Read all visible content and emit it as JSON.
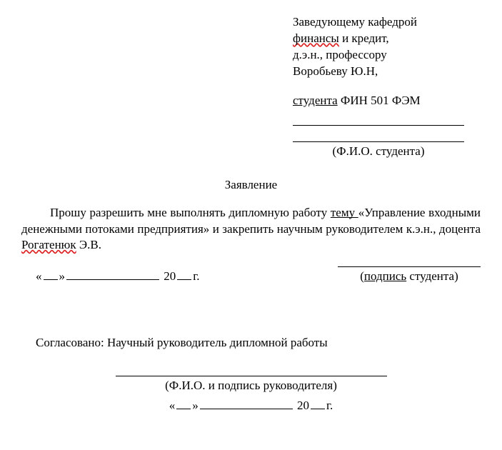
{
  "header": {
    "line1": "Заведующему кафедрой",
    "line2_a": "финансы",
    "line2_b": " и кредит,",
    "line3": "д.э.н., профессору",
    "line4": "Воробьеву Ю.Н,"
  },
  "student": {
    "prefix": "студента",
    "group": " ФИН 501 ФЭМ",
    "fio_label": "(Ф.И.О. студента)"
  },
  "title": "Заявление",
  "body": {
    "p1_a": "Прошу разрешить мне выполнять дипломную работу ",
    "p1_topic": "тему ",
    "p1_b": "«Управление входными денежными потоками предприятия» и закрепить научным руководителем к.э.н., доцента ",
    "supervisor_name": "Рогатенюк",
    "supervisor_initials": " Э.В."
  },
  "date": {
    "open": "«",
    "close": "»",
    "year_prefix": " 20",
    "year_suffix": "г."
  },
  "signature": {
    "label_a": "подпись",
    "label_b": " студента)"
  },
  "agreed": {
    "text": "Согласовано: Научный руководитель дипломной работы"
  },
  "supervisor_sig": {
    "label": "(Ф.И.О. и подпись руководителя)"
  }
}
